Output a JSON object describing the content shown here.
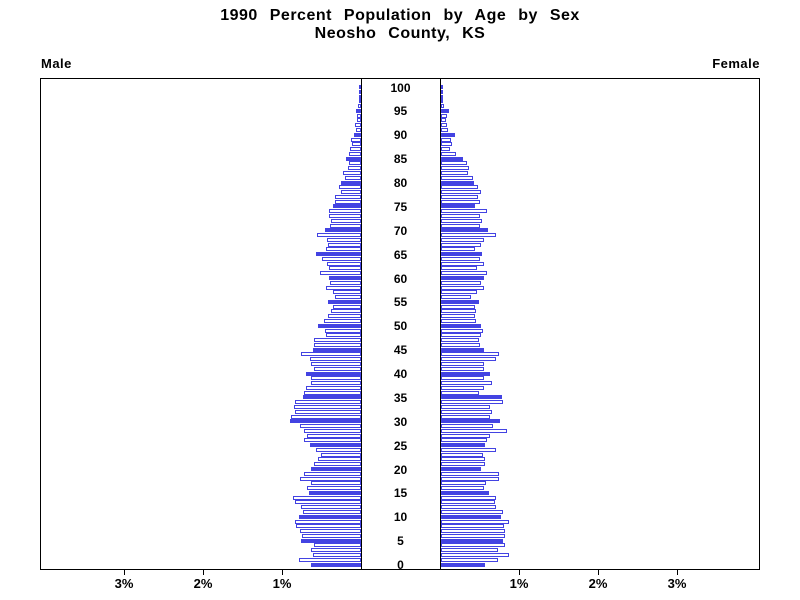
{
  "title": {
    "line1": "1990 Percent Population by Age by Sex",
    "line2": "Neosho County, KS"
  },
  "labels": {
    "male": "Male",
    "female": "Female"
  },
  "axis": {
    "x_ticks": [
      {
        "value": 1,
        "label": "1%"
      },
      {
        "value": 2,
        "label": "2%"
      },
      {
        "value": 3,
        "label": "3%"
      }
    ],
    "age_ticks": [
      0,
      5,
      10,
      15,
      20,
      25,
      30,
      35,
      40,
      45,
      50,
      55,
      60,
      65,
      70,
      75,
      80,
      85,
      90,
      95,
      100
    ]
  },
  "colors": {
    "bar_blue": "#4343e2",
    "bar_outline_fill": "#ffffff",
    "axis_black": "#000000",
    "background": "#ffffff"
  },
  "chart_data": {
    "type": "bar",
    "subtype": "population-pyramid",
    "title": "1990 Percent Population by Age by Sex",
    "subtitle": "Neosho County, KS",
    "orientation": "horizontal-mirrored",
    "x_unit": "% of total population",
    "x_tick_values_percent": [
      1,
      2,
      3
    ],
    "x_axis_max_percent": 4.0,
    "age_min": 0,
    "age_max": 100,
    "age_label_step": 5,
    "grid": false,
    "legend": "none",
    "style_note": "single-year-of-age bars; bars at ages divisible by 5 are solid blue, others white with blue outline; Male bars extend left, Female bars extend right",
    "ages": [
      0,
      1,
      2,
      3,
      4,
      5,
      6,
      7,
      8,
      9,
      10,
      11,
      12,
      13,
      14,
      15,
      16,
      17,
      18,
      19,
      20,
      21,
      22,
      23,
      24,
      25,
      26,
      27,
      28,
      29,
      30,
      31,
      32,
      33,
      34,
      35,
      36,
      37,
      38,
      39,
      40,
      41,
      42,
      43,
      44,
      45,
      46,
      47,
      48,
      49,
      50,
      51,
      52,
      53,
      54,
      55,
      56,
      57,
      58,
      59,
      60,
      61,
      62,
      63,
      64,
      65,
      66,
      67,
      68,
      69,
      70,
      71,
      72,
      73,
      74,
      75,
      76,
      77,
      78,
      79,
      80,
      81,
      82,
      83,
      84,
      85,
      86,
      87,
      88,
      89,
      90,
      91,
      92,
      93,
      94,
      95,
      96,
      97,
      98,
      99,
      100
    ],
    "series": [
      {
        "name": "Male",
        "side": "left",
        "values": [
          0.63,
          0.78,
          0.61,
          0.63,
          0.6,
          0.76,
          0.75,
          0.77,
          0.82,
          0.84,
          0.78,
          0.74,
          0.76,
          0.84,
          0.86,
          0.66,
          0.68,
          0.63,
          0.77,
          0.72,
          0.63,
          0.6,
          0.55,
          0.51,
          0.57,
          0.65,
          0.72,
          0.68,
          0.72,
          0.77,
          0.9,
          0.88,
          0.83,
          0.85,
          0.83,
          0.73,
          0.72,
          0.7,
          0.63,
          0.63,
          0.7,
          0.59,
          0.63,
          0.65,
          0.76,
          0.61,
          0.6,
          0.59,
          0.44,
          0.46,
          0.55,
          0.47,
          0.42,
          0.38,
          0.36,
          0.42,
          0.33,
          0.36,
          0.44,
          0.39,
          0.41,
          0.52,
          0.4,
          0.43,
          0.49,
          0.57,
          0.44,
          0.42,
          0.43,
          0.56,
          0.46,
          0.39,
          0.38,
          0.4,
          0.4,
          0.36,
          0.33,
          0.33,
          0.25,
          0.28,
          0.25,
          0.2,
          0.23,
          0.16,
          0.15,
          0.19,
          0.15,
          0.14,
          0.11,
          0.13,
          0.09,
          0.06,
          0.08,
          0.05,
          0.05,
          0.06,
          0.04,
          0.03,
          0.02,
          0.02,
          0.02
        ]
      },
      {
        "name": "Female",
        "side": "right",
        "values": [
          0.56,
          0.72,
          0.86,
          0.72,
          0.81,
          0.79,
          0.81,
          0.81,
          0.8,
          0.86,
          0.76,
          0.78,
          0.7,
          0.68,
          0.69,
          0.61,
          0.55,
          0.57,
          0.73,
          0.74,
          0.51,
          0.56,
          0.56,
          0.53,
          0.69,
          0.56,
          0.58,
          0.62,
          0.83,
          0.66,
          0.75,
          0.62,
          0.65,
          0.62,
          0.79,
          0.77,
          0.48,
          0.55,
          0.65,
          0.55,
          0.62,
          0.55,
          0.55,
          0.7,
          0.73,
          0.55,
          0.49,
          0.48,
          0.51,
          0.53,
          0.5,
          0.44,
          0.43,
          0.44,
          0.43,
          0.48,
          0.38,
          0.45,
          0.55,
          0.51,
          0.55,
          0.58,
          0.45,
          0.55,
          0.49,
          0.52,
          0.43,
          0.5,
          0.55,
          0.69,
          0.59,
          0.49,
          0.52,
          0.49,
          0.58,
          0.43,
          0.49,
          0.47,
          0.5,
          0.47,
          0.42,
          0.4,
          0.34,
          0.35,
          0.33,
          0.28,
          0.19,
          0.11,
          0.14,
          0.13,
          0.18,
          0.09,
          0.08,
          0.06,
          0.08,
          0.1,
          0.04,
          0.03,
          0.02,
          0.01,
          0.02
        ]
      }
    ]
  }
}
